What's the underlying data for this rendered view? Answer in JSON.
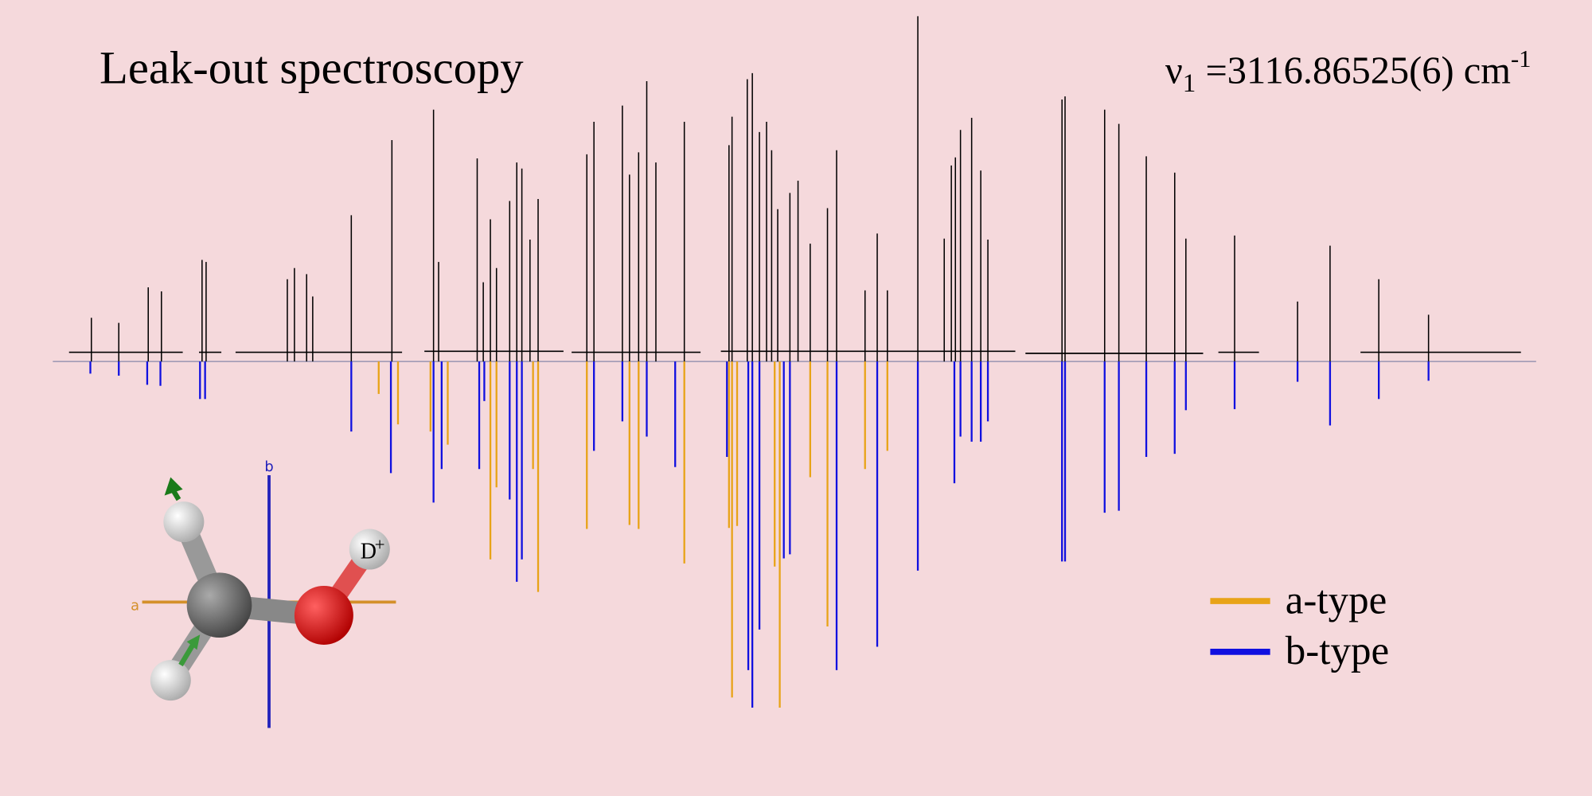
{
  "chart_data": {
    "type": "stick",
    "title": "Leak-out spectroscopy",
    "annotation": {
      "symbol": "ν",
      "subscript": "1",
      "text": " =3116.86525(6) cm",
      "superscript": "-1"
    },
    "xlim": [
      0,
      1461
    ],
    "ylim": [
      -345,
      345
    ],
    "series": [
      {
        "color": "#000000",
        "x": [
          38,
          65,
          94,
          107,
          147,
          151,
          231,
          238,
          250,
          256,
          294,
          334,
          375,
          380,
          418,
          424,
          431,
          437,
          450,
          457,
          462,
          470,
          478,
          526,
          533,
          561,
          568,
          577,
          585,
          594,
          622,
          666,
          669,
          684,
          689,
          696,
          703,
          708,
          714,
          726,
          734,
          746,
          763,
          772,
          800,
          812,
          822,
          852,
          878,
          885,
          889,
          894,
          905,
          914,
          921,
          994,
          997,
          1036,
          1050,
          1077,
          1105,
          1116,
          1164,
          1226,
          1258,
          1306,
          1355
        ],
        "values": [
          43,
          38,
          73,
          69,
          100,
          98,
          81,
          92,
          86,
          64,
          144,
          218,
          248,
          98,
          200,
          78,
          140,
          92,
          158,
          196,
          190,
          120,
          160,
          204,
          236,
          252,
          184,
          206,
          276,
          196,
          236,
          213,
          241,
          278,
          284,
          226,
          236,
          208,
          150,
          166,
          178,
          116,
          151,
          208,
          70,
          126,
          70,
          340,
          121,
          193,
          201,
          228,
          240,
          188,
          120,
          258,
          261,
          248,
          234,
          202,
          186,
          121,
          124,
          59,
          114,
          81,
          46
        ]
      },
      {
        "name": "a-type",
        "color": "#e8a317",
        "x": [
          321,
          340,
          372,
          389,
          431,
          437,
          473,
          478,
          526,
          568,
          577,
          622,
          666,
          669,
          674,
          711,
          716,
          746,
          763,
          800,
          822
        ],
        "values": [
          -32,
          -62,
          -69,
          -82,
          -195,
          -124,
          -106,
          -227,
          -165,
          -161,
          -165,
          -199,
          -164,
          -331,
          -162,
          -202,
          -341,
          -114,
          -261,
          -106,
          -88
        ]
      },
      {
        "name": "b-type",
        "color": "#1010e0",
        "x": [
          37,
          65,
          93,
          106,
          145,
          150,
          294,
          333,
          375,
          383,
          420,
          425,
          450,
          457,
          462,
          533,
          561,
          585,
          613,
          664,
          685,
          689,
          696,
          720,
          726,
          772,
          812,
          852,
          888,
          894,
          905,
          914,
          921,
          994,
          997,
          1036,
          1050,
          1077,
          1105,
          1116,
          1164,
          1226,
          1258,
          1306,
          1355
        ],
        "values": [
          -12,
          -14,
          -23,
          -24,
          -37,
          -37,
          -69,
          -110,
          -139,
          -106,
          -106,
          -39,
          -136,
          -217,
          -195,
          -88,
          -59,
          -74,
          -104,
          -94,
          -304,
          -341,
          -264,
          -194,
          -190,
          -304,
          -281,
          -206,
          -120,
          -74,
          -79,
          -79,
          -59,
          -197,
          -197,
          -149,
          -147,
          -94,
          -91,
          -48,
          -47,
          -20,
          -63,
          -37,
          -19
        ]
      }
    ]
  },
  "molecule": {
    "axis_a": "a",
    "axis_b": "b",
    "atom": "D",
    "charge": "+"
  }
}
